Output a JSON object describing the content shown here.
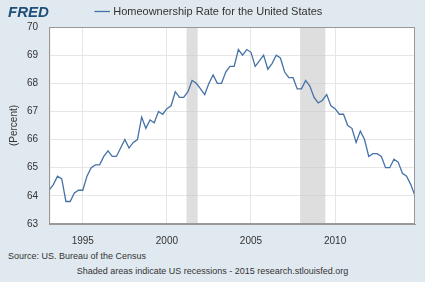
{
  "chart_data": {
    "type": "line",
    "logo": "FRED",
    "y_label": "(Percent)",
    "source": "Source: US. Bureau of the Census",
    "note": "Shaded areas indicate US recessions - 2015 research.stlouisfed.org",
    "x": [
      1993,
      1993.25,
      1993.5,
      1993.75,
      1994,
      1994.25,
      1994.5,
      1994.75,
      1995,
      1995.25,
      1995.5,
      1995.75,
      1996,
      1996.25,
      1996.5,
      1996.75,
      1997,
      1997.25,
      1997.5,
      1997.75,
      1998,
      1998.25,
      1998.5,
      1998.75,
      1999,
      1999.25,
      1999.5,
      1999.75,
      2000,
      2000.25,
      2000.5,
      2000.75,
      2001,
      2001.25,
      2001.5,
      2001.75,
      2002,
      2002.25,
      2002.5,
      2002.75,
      2003,
      2003.25,
      2003.5,
      2003.75,
      2004,
      2004.25,
      2004.5,
      2004.75,
      2005,
      2005.25,
      2005.5,
      2005.75,
      2006,
      2006.25,
      2006.5,
      2006.75,
      2007,
      2007.25,
      2007.5,
      2007.75,
      2008,
      2008.25,
      2008.5,
      2008.75,
      2009,
      2009.25,
      2009.5,
      2009.75,
      2010,
      2010.25,
      2010.5,
      2010.75,
      2011,
      2011.25,
      2011.5,
      2011.75,
      2012,
      2012.25,
      2012.5,
      2012.75,
      2013,
      2013.25,
      2013.5,
      2013.75,
      2014,
      2014.25,
      2014.5,
      2014.75
    ],
    "series": [
      {
        "name": "Homeownership Rate for the United States",
        "color": "#4572a7",
        "values": [
          64.2,
          64.4,
          64.7,
          64.6,
          63.8,
          63.8,
          64.1,
          64.2,
          64.2,
          64.7,
          65.0,
          65.1,
          65.1,
          65.4,
          65.6,
          65.4,
          65.4,
          65.7,
          66.0,
          65.7,
          65.9,
          66.0,
          66.8,
          66.4,
          66.7,
          66.6,
          67.0,
          66.9,
          67.1,
          67.2,
          67.7,
          67.5,
          67.5,
          67.7,
          68.1,
          68.0,
          67.8,
          67.6,
          68.0,
          68.3,
          68.0,
          68.0,
          68.4,
          68.6,
          68.6,
          69.2,
          69.0,
          69.2,
          69.1,
          68.6,
          68.8,
          69.0,
          68.5,
          68.7,
          69.0,
          68.9,
          68.4,
          68.2,
          68.2,
          67.8,
          67.8,
          68.1,
          67.9,
          67.5,
          67.3,
          67.4,
          67.6,
          67.2,
          67.1,
          66.9,
          66.9,
          66.5,
          66.4,
          65.9,
          66.3,
          66.0,
          65.4,
          65.5,
          65.5,
          65.4,
          65.0,
          65.0,
          65.3,
          65.2,
          64.8,
          64.7,
          64.4,
          64.0
        ]
      }
    ],
    "xlim": [
      1993,
      2014.75
    ],
    "xticks": [
      1995,
      2000,
      2005,
      2010
    ],
    "ylim": [
      63,
      70
    ],
    "yticks": [
      63,
      64,
      65,
      66,
      67,
      68,
      69,
      70
    ],
    "recessions": [
      [
        2001.17,
        2001.83
      ],
      [
        2007.92,
        2009.42
      ]
    ],
    "grid": true,
    "legend": "top"
  }
}
